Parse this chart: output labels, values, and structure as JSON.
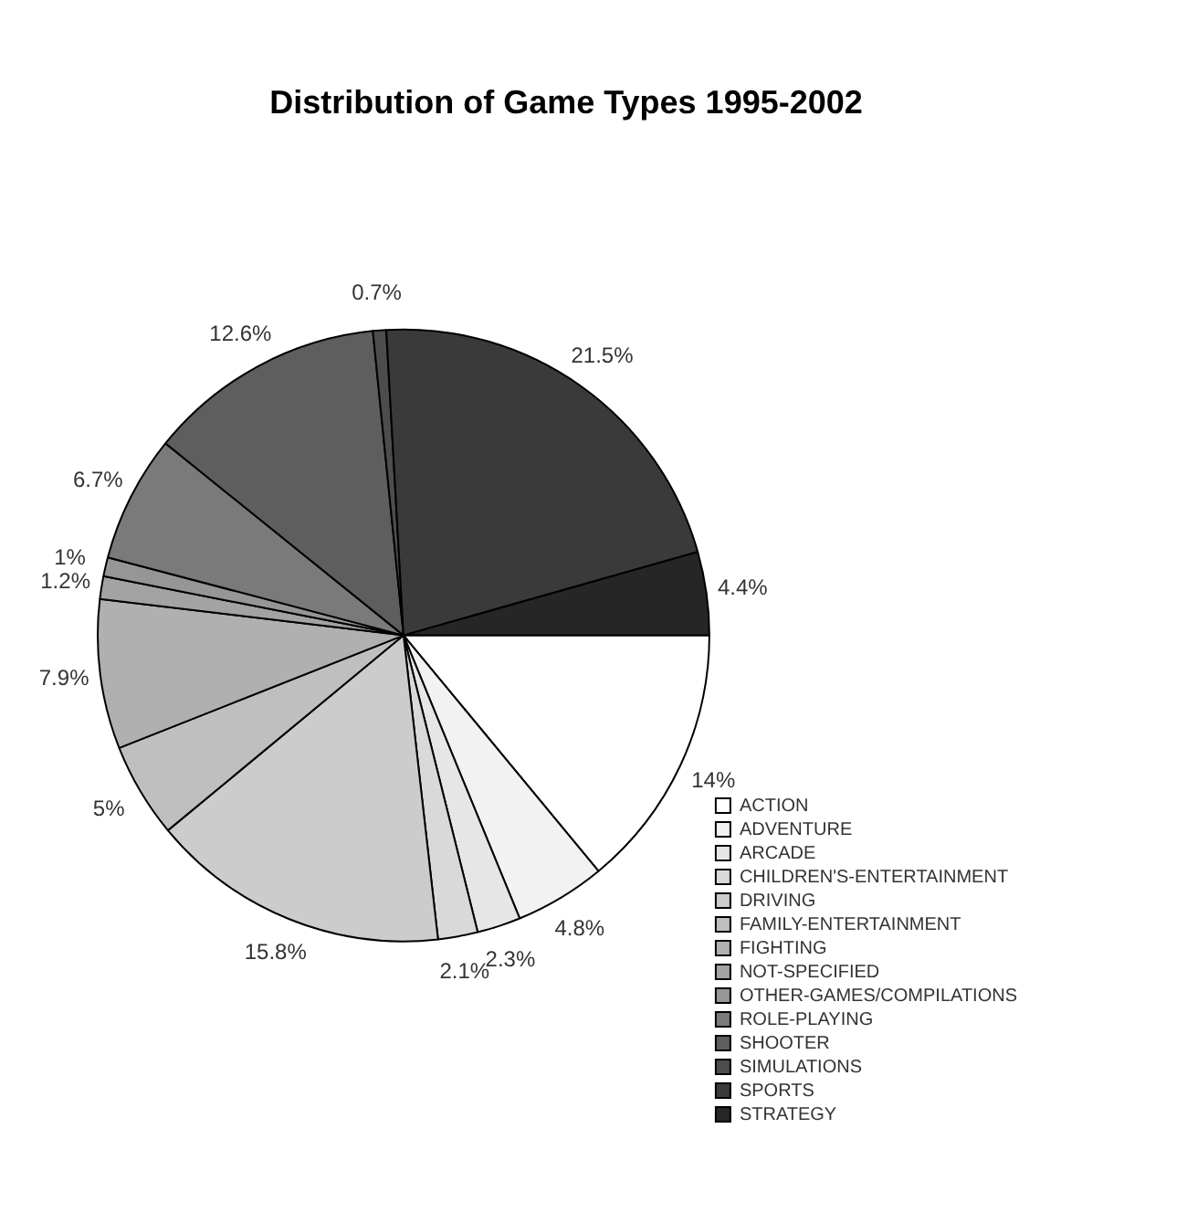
{
  "chart_data": {
    "type": "pie",
    "title": "Distribution of Game Types 1995-2002",
    "categories": [
      "ACTION",
      "ADVENTURE",
      "ARCADE",
      "CHILDREN'S-ENTERTAINMENT",
      "DRIVING",
      "FAMILY-ENTERTAINMENT",
      "FIGHTING",
      "NOT-SPECIFIED",
      "OTHER-GAMES/COMPILATIONS",
      "ROLE-PLAYING",
      "SHOOTER",
      "SIMULATIONS",
      "SPORTS",
      "STRATEGY"
    ],
    "values": [
      14,
      4.8,
      2.3,
      2.1,
      15.8,
      5,
      7.9,
      1.2,
      1,
      6.7,
      12.6,
      0.7,
      21.5,
      4.4
    ],
    "colors": [
      "#ffffff",
      "#f2f2f2",
      "#e6e6e6",
      "#d9d9d9",
      "#cccccc",
      "#bfbfbf",
      "#b0b0b0",
      "#a3a3a3",
      "#969696",
      "#7a7a7a",
      "#5e5e5e",
      "#4d4d4d",
      "#3a3a3a",
      "#262626"
    ],
    "value_labels": [
      "14%",
      "4.8%",
      "2.3%",
      "2.1%",
      "15.8%",
      "5%",
      "7.9%",
      "1.2%",
      "1%",
      "6.7%",
      "12.6%",
      "0.7%",
      "21.5%",
      "4.4%"
    ],
    "legend": "bottom right"
  }
}
